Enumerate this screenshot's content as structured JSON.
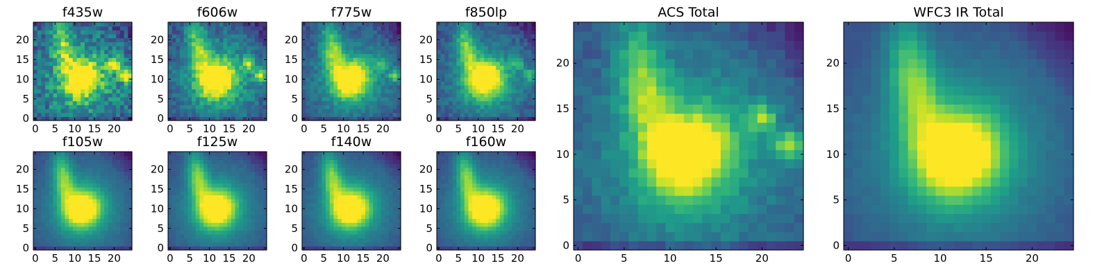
{
  "figure": {
    "colormap": "viridis",
    "colormap_stops": [
      "#440154",
      "#482878",
      "#3e4989",
      "#31688e",
      "#26828e",
      "#1f9e89",
      "#35b779",
      "#6ece58",
      "#b5de2b",
      "#fde725"
    ]
  },
  "chart_data": [
    {
      "type": "heatmap",
      "title": "f435w",
      "grid_size": 25,
      "xlim": [
        -0.5,
        24.5
      ],
      "ylim": [
        -0.5,
        24.5
      ],
      "xticks": [
        0,
        5,
        10,
        15,
        20
      ],
      "yticks": [
        0,
        5,
        10,
        15,
        20
      ],
      "peak": [
        12,
        10
      ],
      "noise": 0.34,
      "extra_peaks": [
        [
          23,
          11,
          0.85
        ],
        [
          20,
          14,
          0.7
        ]
      ],
      "background": 0.28,
      "elongation": 0.45
    },
    {
      "type": "heatmap",
      "title": "f606w",
      "grid_size": 25,
      "xlim": [
        -0.5,
        24.5
      ],
      "ylim": [
        -0.5,
        24.5
      ],
      "xticks": [
        0,
        5,
        10,
        15,
        20
      ],
      "yticks": [
        0,
        5,
        10,
        15,
        20
      ],
      "peak": [
        12,
        10
      ],
      "noise": 0.22,
      "extra_peaks": [
        [
          23,
          11,
          0.6
        ],
        [
          20,
          14,
          0.5
        ]
      ],
      "background": 0.25,
      "elongation": 0.5
    },
    {
      "type": "heatmap",
      "title": "f775w",
      "grid_size": 25,
      "xlim": [
        -0.5,
        24.5
      ],
      "ylim": [
        -0.5,
        24.5
      ],
      "xticks": [
        0,
        5,
        10,
        15,
        20
      ],
      "yticks": [
        0,
        5,
        10,
        15,
        20
      ],
      "peak": [
        12,
        10
      ],
      "noise": 0.16,
      "extra_peaks": [
        [
          23,
          11,
          0.4
        ],
        [
          20,
          14,
          0.35
        ]
      ],
      "background": 0.22,
      "elongation": 0.5
    },
    {
      "type": "heatmap",
      "title": "f850lp",
      "grid_size": 25,
      "xlim": [
        -0.5,
        24.5
      ],
      "ylim": [
        -0.5,
        24.5
      ],
      "xticks": [
        0,
        5,
        10,
        15,
        20
      ],
      "yticks": [
        0,
        5,
        10,
        15,
        20
      ],
      "peak": [
        12,
        10
      ],
      "noise": 0.16,
      "extra_peaks": [
        [
          23,
          11,
          0.4
        ],
        [
          20,
          14,
          0.3
        ]
      ],
      "background": 0.22,
      "elongation": 0.5
    },
    {
      "type": "heatmap",
      "title": "f105w",
      "grid_size": 25,
      "xlim": [
        -0.5,
        24.5
      ],
      "ylim": [
        -0.5,
        24.5
      ],
      "xticks": [
        0,
        5,
        10,
        15,
        20
      ],
      "yticks": [
        0,
        5,
        10,
        15,
        20
      ],
      "peak": [
        12,
        10
      ],
      "noise": 0.05,
      "extra_peaks": [],
      "background": 0.22,
      "elongation": 0.55
    },
    {
      "type": "heatmap",
      "title": "f125w",
      "grid_size": 25,
      "xlim": [
        -0.5,
        24.5
      ],
      "ylim": [
        -0.5,
        24.5
      ],
      "xticks": [
        0,
        5,
        10,
        15,
        20
      ],
      "yticks": [
        0,
        5,
        10,
        15,
        20
      ],
      "peak": [
        12,
        10
      ],
      "noise": 0.05,
      "extra_peaks": [],
      "background": 0.22,
      "elongation": 0.55
    },
    {
      "type": "heatmap",
      "title": "f140w",
      "grid_size": 25,
      "xlim": [
        -0.5,
        24.5
      ],
      "ylim": [
        -0.5,
        24.5
      ],
      "xticks": [
        0,
        5,
        10,
        15,
        20
      ],
      "yticks": [
        0,
        5,
        10,
        15,
        20
      ],
      "peak": [
        12,
        10
      ],
      "noise": 0.05,
      "extra_peaks": [],
      "background": 0.22,
      "elongation": 0.55
    },
    {
      "type": "heatmap",
      "title": "f160w",
      "grid_size": 25,
      "xlim": [
        -0.5,
        24.5
      ],
      "ylim": [
        -0.5,
        24.5
      ],
      "xticks": [
        0,
        5,
        10,
        15,
        20
      ],
      "yticks": [
        0,
        5,
        10,
        15,
        20
      ],
      "peak": [
        12,
        10
      ],
      "noise": 0.05,
      "extra_peaks": [],
      "background": 0.22,
      "elongation": 0.55
    },
    {
      "type": "heatmap",
      "title": "ACS Total",
      "grid_size": 25,
      "xlim": [
        -0.5,
        24.5
      ],
      "ylim": [
        -0.5,
        24.5
      ],
      "xticks": [
        0,
        5,
        10,
        15,
        20
      ],
      "yticks": [
        0,
        5,
        10,
        15,
        20
      ],
      "peak": [
        12,
        10
      ],
      "noise": 0.12,
      "extra_peaks": [
        [
          23,
          11,
          0.5
        ],
        [
          20,
          14,
          0.4
        ]
      ],
      "background": 0.25,
      "elongation": 0.5
    },
    {
      "type": "heatmap",
      "title": "WFC3 IR Total",
      "grid_size": 25,
      "xlim": [
        -0.5,
        24.5
      ],
      "ylim": [
        -0.5,
        24.5
      ],
      "xticks": [
        0,
        5,
        10,
        15,
        20
      ],
      "yticks": [
        0,
        5,
        10,
        15,
        20
      ],
      "peak": [
        12,
        10
      ],
      "noise": 0.04,
      "extra_peaks": [],
      "background": 0.22,
      "elongation": 0.55
    }
  ]
}
